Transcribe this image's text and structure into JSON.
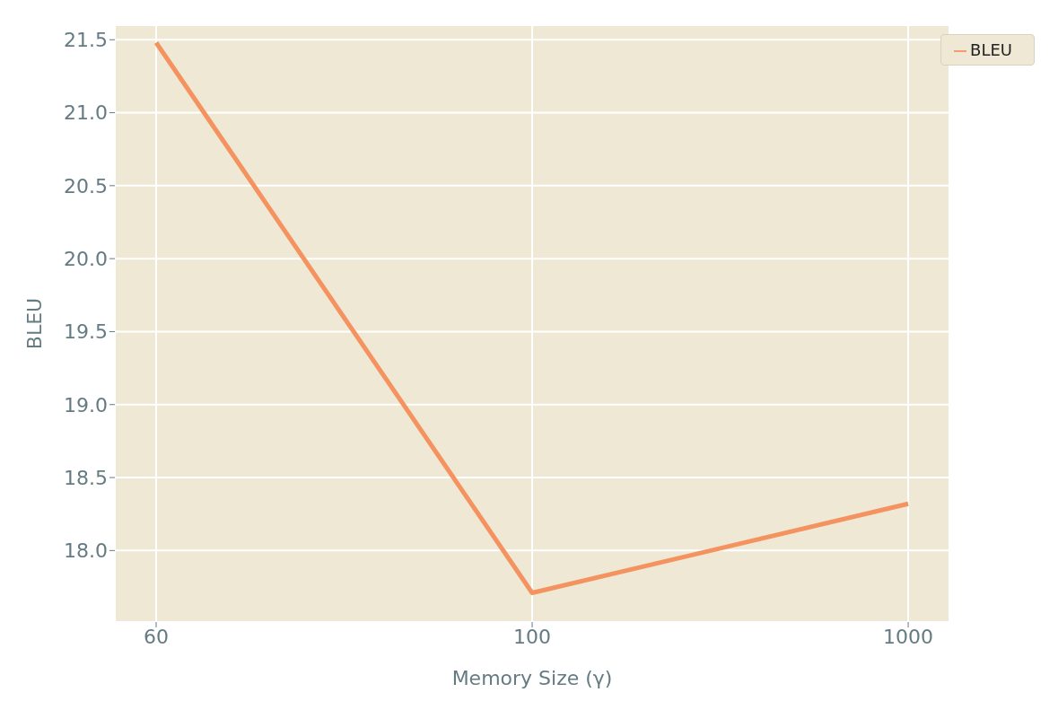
{
  "chart_data": {
    "type": "line",
    "xlabel": "Memory Size (γ)",
    "ylabel": "BLEU",
    "categories": [
      "60",
      "100",
      "1000"
    ],
    "series": [
      {
        "name": "BLEU",
        "color": "#f4935f",
        "values": [
          21.48,
          17.71,
          18.32
        ]
      }
    ],
    "ylim": [
      17.51,
      21.6
    ],
    "yticks": [
      {
        "value": 18,
        "label": "18.0"
      },
      18.5,
      {
        "value": 19,
        "label": "19.0"
      },
      19.5,
      {
        "value": 20,
        "label": "20.0"
      },
      20.5,
      {
        "value": 21,
        "label": "21.0"
      },
      21.5
    ],
    "grid": true,
    "legend": "top right",
    "marker": "none",
    "line_style": "solid"
  }
}
